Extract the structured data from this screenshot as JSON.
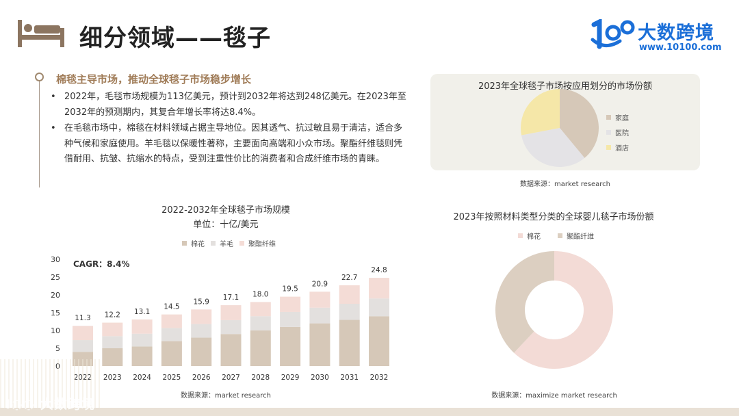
{
  "page": {
    "title": "细分领域——毯子",
    "logo_name": "大数跨境",
    "logo_url": "www.10100.com",
    "watermark": "大数跨境",
    "icon_name": "bed-icon"
  },
  "section": {
    "heading": "棉毯主导市场，推动全球毯子市场稳步增长",
    "bullets": [
      "2022年，毛毯市场规模为113亿美元，预计到2032年将达到248亿美元。在2023年至2032年的预测期内，其复合年增长率将达8.4%。",
      "在毛毯市场中，棉毯在材料领域占据主导地位。因其透气、抗过敏且易于清洁，适合多种气候和家庭使用。羊毛毯以保暖性著称，主要面向高端和小众市场。聚酯纤维毯则凭借耐用、抗皱、抗缩水的特点，受到注重性价比的消费者和合成纤维市场的青睐。"
    ]
  },
  "sources": {
    "pie": "数据来源：market research",
    "bar": "数据来源：market research",
    "donut": "数据来源：maximize market research"
  },
  "colors": {
    "cotton": "#d6c8b8",
    "wool": "#e3e0de",
    "polyester": "#f4dcd6",
    "home": "#d6c8b8",
    "hospital": "#e4e3e6",
    "hotel": "#f5e7a8",
    "donut_cotton": "#f3dbd6",
    "donut_polyester": "#dccfc1"
  },
  "chart_data": [
    {
      "type": "pie",
      "title": "2023年全球毯子市场按应用划分的市场份额",
      "labels": [
        "家庭",
        "医院",
        "酒店"
      ],
      "values": [
        39,
        33,
        28
      ],
      "legend": "right"
    },
    {
      "type": "bar",
      "stacked": true,
      "title": "2022-2032年全球毯子市场规模",
      "subtitle": "单位：十亿/美元",
      "annotation": "CAGR：8.4%",
      "categories": [
        "2022",
        "2023",
        "2024",
        "2025",
        "2026",
        "2027",
        "2028",
        "2029",
        "2030",
        "2031",
        "2032"
      ],
      "series": [
        {
          "name": "棉花",
          "values": [
            4.0,
            5.0,
            5.5,
            7.0,
            8.0,
            9.0,
            10.0,
            11.0,
            12.0,
            13.0,
            14.0
          ]
        },
        {
          "name": "羊毛",
          "values": [
            3.3,
            3.4,
            3.6,
            3.7,
            3.8,
            3.9,
            4.0,
            4.2,
            4.4,
            4.5,
            5.0
          ]
        },
        {
          "name": "聚酯纤维",
          "values": [
            4.0,
            3.8,
            4.0,
            3.8,
            4.1,
            4.2,
            4.0,
            4.3,
            4.5,
            5.2,
            5.8
          ]
        }
      ],
      "totals": [
        "11.3",
        "12.2",
        "13.1",
        "14.5",
        "15.9",
        "17.1",
        "18.0",
        "19.5",
        "20.9",
        "22.7",
        "24.8"
      ],
      "yticks": [
        "0",
        "5",
        "10",
        "15",
        "20",
        "25",
        "30"
      ],
      "ylim": [
        0,
        30
      ],
      "legend": "top"
    },
    {
      "type": "pie",
      "variant": "donut",
      "title": "2023年按照材料类型分类的全球婴儿毯子市场份额",
      "labels": [
        "棉花",
        "聚酯纤维"
      ],
      "values": [
        62,
        38
      ],
      "legend": "top"
    }
  ]
}
